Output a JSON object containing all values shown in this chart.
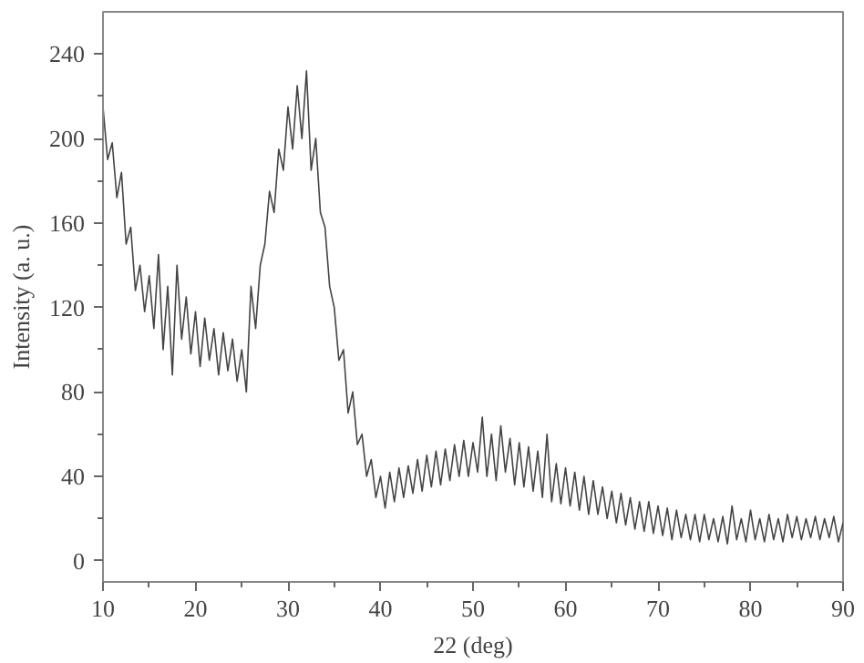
{
  "chart_data": {
    "type": "line",
    "xlabel": "22 (deg)",
    "ylabel": "Intensity (a. u.)",
    "xlim": [
      10,
      90
    ],
    "ylim": [
      -10,
      260
    ],
    "xticks": [
      10,
      {
        "value": 15,
        "label": null
      },
      20,
      {
        "value": 25,
        "label": null
      },
      30,
      {
        "value": 35,
        "label": null
      },
      40,
      {
        "value": 45,
        "label": null
      },
      50,
      {
        "value": 55,
        "label": null
      },
      60,
      {
        "value": 65,
        "label": null
      },
      70,
      {
        "value": 75,
        "label": null
      },
      80,
      {
        "value": 85,
        "label": null
      },
      90
    ],
    "yticks": [
      0,
      {
        "value": 20,
        "label": null
      },
      40,
      {
        "value": 60,
        "label": null
      },
      80,
      {
        "value": 100,
        "label": null
      },
      120,
      {
        "value": 140,
        "label": null
      },
      160,
      {
        "value": 180,
        "label": null
      },
      200,
      {
        "value": 220,
        "label": null
      },
      240
    ],
    "grid": false,
    "marker": "none",
    "line_style": "solid",
    "series": [
      {
        "color": "#444444",
        "x": [
          10,
          10.5,
          11,
          11.5,
          12,
          12.5,
          13,
          13.5,
          14,
          14.5,
          15,
          15.5,
          16,
          16.5,
          17,
          17.5,
          18,
          18.5,
          19,
          19.5,
          20,
          20.5,
          21,
          21.5,
          22,
          22.5,
          23,
          23.5,
          24,
          24.5,
          25,
          25.5,
          26,
          26.5,
          27,
          27.5,
          28,
          28.5,
          29,
          29.5,
          30,
          30.5,
          31,
          31.5,
          32,
          32.5,
          33,
          33.5,
          34,
          34.5,
          35,
          35.5,
          36,
          36.5,
          37,
          37.5,
          38,
          38.5,
          39,
          39.5,
          40,
          40.5,
          41,
          41.5,
          42,
          42.5,
          43,
          43.5,
          44,
          44.5,
          45,
          45.5,
          46,
          46.5,
          47,
          47.5,
          48,
          48.5,
          49,
          49.5,
          50,
          50.5,
          51,
          51.5,
          52,
          52.5,
          53,
          53.5,
          54,
          54.5,
          55,
          55.5,
          56,
          56.5,
          57,
          57.5,
          58,
          58.5,
          59,
          59.5,
          60,
          60.5,
          61,
          61.5,
          62,
          62.5,
          63,
          63.5,
          64,
          64.5,
          65,
          65.5,
          66,
          66.5,
          67,
          67.5,
          68,
          68.5,
          69,
          69.5,
          70,
          70.5,
          71,
          71.5,
          72,
          72.5,
          73,
          73.5,
          74,
          74.5,
          75,
          75.5,
          76,
          76.5,
          77,
          77.5,
          78,
          78.5,
          79,
          79.5,
          80,
          80.5,
          81,
          81.5,
          82,
          82.5,
          83,
          83.5,
          84,
          84.5,
          85,
          85.5,
          86,
          86.5,
          87,
          87.5,
          88,
          88.5,
          89,
          89.5,
          90
        ],
        "values": [
          215,
          190,
          198,
          172,
          184,
          150,
          158,
          128,
          140,
          118,
          135,
          110,
          145,
          100,
          130,
          88,
          140,
          105,
          125,
          98,
          118,
          92,
          115,
          95,
          110,
          88,
          108,
          90,
          105,
          85,
          100,
          80,
          130,
          110,
          140,
          150,
          175,
          165,
          195,
          185,
          215,
          195,
          225,
          200,
          232,
          185,
          200,
          165,
          158,
          130,
          120,
          95,
          100,
          70,
          80,
          55,
          60,
          40,
          48,
          30,
          40,
          25,
          42,
          28,
          44,
          30,
          45,
          32,
          48,
          33,
          50,
          35,
          52,
          36,
          53,
          38,
          55,
          40,
          57,
          40,
          56,
          42,
          68,
          40,
          60,
          38,
          64,
          42,
          58,
          36,
          56,
          35,
          54,
          33,
          52,
          30,
          60,
          28,
          46,
          27,
          44,
          26,
          42,
          24,
          40,
          22,
          38,
          22,
          35,
          20,
          33,
          18,
          32,
          17,
          30,
          15,
          28,
          14,
          28,
          13,
          26,
          12,
          25,
          10,
          24,
          11,
          22,
          10,
          22,
          9,
          22,
          10,
          20,
          9,
          21,
          8,
          26,
          10,
          20,
          9,
          24,
          10,
          20,
          9,
          22,
          10,
          20,
          9,
          22,
          11,
          21,
          10,
          20,
          11,
          21,
          10,
          20,
          11,
          21,
          9,
          18
        ]
      }
    ]
  }
}
